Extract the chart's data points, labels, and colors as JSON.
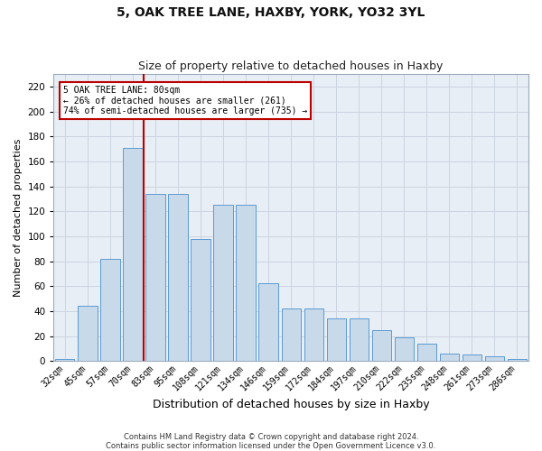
{
  "title1": "5, OAK TREE LANE, HAXBY, YORK, YO32 3YL",
  "title2": "Size of property relative to detached houses in Haxby",
  "xlabel": "Distribution of detached houses by size in Haxby",
  "ylabel": "Number of detached properties",
  "footnote1": "Contains HM Land Registry data © Crown copyright and database right 2024.",
  "footnote2": "Contains public sector information licensed under the Open Government Licence v3.0.",
  "categories": [
    "32sqm",
    "45sqm",
    "57sqm",
    "70sqm",
    "83sqm",
    "95sqm",
    "108sqm",
    "121sqm",
    "134sqm",
    "146sqm",
    "159sqm",
    "172sqm",
    "184sqm",
    "197sqm",
    "210sqm",
    "222sqm",
    "235sqm",
    "248sqm",
    "261sqm",
    "273sqm",
    "286sqm"
  ],
  "values": [
    2,
    44,
    82,
    171,
    134,
    134,
    98,
    125,
    125,
    62,
    42,
    42,
    34,
    34,
    25,
    19,
    14,
    6,
    5,
    4,
    2
  ],
  "bar_color": "#c8d9ea",
  "bar_edge_color": "#5b9bd5",
  "vline_index": 3.5,
  "vline_color": "#bb0000",
  "annotation_line1": "5 OAK TREE LANE: 80sqm",
  "annotation_line2": "← 26% of detached houses are smaller (261)",
  "annotation_line3": "74% of semi-detached houses are larger (735) →",
  "annotation_box_facecolor": "#ffffff",
  "annotation_box_edgecolor": "#bb0000",
  "ylim": [
    0,
    230
  ],
  "yticks": [
    0,
    20,
    40,
    60,
    80,
    100,
    120,
    140,
    160,
    180,
    200,
    220
  ],
  "grid_color": "#ccd4e0",
  "bg_color": "#e8eef5",
  "title1_fontsize": 10,
  "title2_fontsize": 9,
  "ylabel_fontsize": 8,
  "xlabel_fontsize": 9,
  "tick_fontsize": 7,
  "footnote_fontsize": 6
}
